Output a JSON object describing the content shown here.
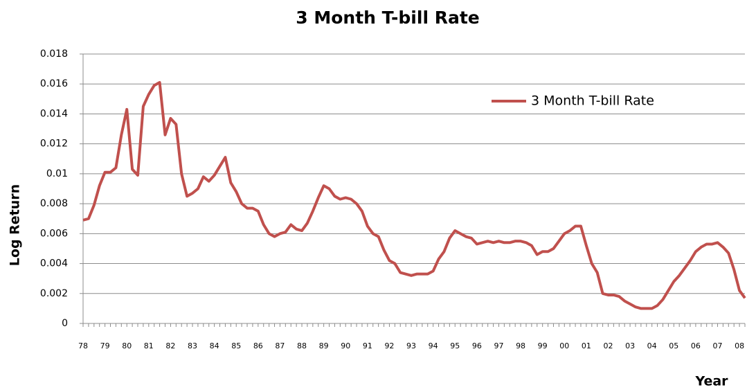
{
  "chart_data": {
    "type": "line",
    "title": "3 Month T-bill Rate",
    "xlabel": "Year",
    "ylabel": "Log Return",
    "categories": [
      "78",
      null,
      null,
      null,
      "79",
      null,
      null,
      null,
      "80",
      null,
      null,
      null,
      "81",
      null,
      null,
      null,
      "82",
      null,
      null,
      null,
      "83",
      null,
      null,
      null,
      "84",
      null,
      null,
      null,
      "85",
      null,
      null,
      null,
      "86",
      null,
      null,
      null,
      "87",
      null,
      null,
      null,
      "88",
      null,
      null,
      null,
      "89",
      null,
      null,
      null,
      "90",
      null,
      null,
      null,
      "91",
      null,
      null,
      null,
      "92",
      null,
      null,
      null,
      "93",
      null,
      null,
      null,
      "94",
      null,
      null,
      null,
      "95",
      null,
      null,
      null,
      "96",
      null,
      null,
      null,
      "97",
      null,
      null,
      null,
      "98",
      null,
      null,
      null,
      "99",
      null,
      null,
      null,
      "00",
      null,
      null,
      null,
      "01",
      null,
      null,
      null,
      "02",
      null,
      null,
      null,
      "03",
      null,
      null,
      null,
      "04",
      null,
      null,
      null,
      "05",
      null,
      null,
      null,
      "06",
      null,
      null,
      null,
      "07",
      null,
      null,
      null,
      "08",
      null
    ],
    "series": [
      {
        "name": "3 Month T-bill Rate",
        "color": "#c0504d",
        "values": [
          0.0069,
          0.007,
          0.0079,
          0.0092,
          0.0101,
          0.0101,
          0.0104,
          0.0126,
          0.0143,
          0.0103,
          0.0099,
          0.0145,
          0.0153,
          0.0159,
          0.0161,
          0.0126,
          0.0137,
          0.0133,
          0.01,
          0.0085,
          0.0087,
          0.009,
          0.0098,
          0.0095,
          0.0099,
          0.0105,
          0.0111,
          0.0094,
          0.0088,
          0.008,
          0.0077,
          0.0077,
          0.0075,
          0.0066,
          0.006,
          0.0058,
          0.006,
          0.0061,
          0.0066,
          0.0063,
          0.0062,
          0.0067,
          0.0075,
          0.0084,
          0.0092,
          0.009,
          0.0085,
          0.0083,
          0.0084,
          0.0083,
          0.008,
          0.0075,
          0.0065,
          0.006,
          0.0058,
          0.0049,
          0.0042,
          0.004,
          0.0034,
          0.0033,
          0.0032,
          0.0033,
          0.0033,
          0.0033,
          0.0035,
          0.0043,
          0.0048,
          0.0057,
          0.0062,
          0.006,
          0.0058,
          0.0057,
          0.0053,
          0.0054,
          0.0055,
          0.0054,
          0.0055,
          0.0054,
          0.0054,
          0.0055,
          0.0055,
          0.0054,
          0.0052,
          0.0046,
          0.0048,
          0.0048,
          0.005,
          0.0055,
          0.006,
          0.0062,
          0.0065,
          0.0065,
          0.0052,
          0.004,
          0.0034,
          0.002,
          0.0019,
          0.0019,
          0.0018,
          0.0015,
          0.0013,
          0.0011,
          0.001,
          0.001,
          0.001,
          0.0012,
          0.0016,
          0.0022,
          0.0028,
          0.0032,
          0.0037,
          0.0042,
          0.0048,
          0.0051,
          0.0053,
          0.0053,
          0.0054,
          0.0051,
          0.0047,
          0.0036,
          0.0022,
          0.0017
        ]
      }
    ],
    "ylim": [
      0,
      0.018
    ],
    "yticks": [
      0,
      0.002,
      0.004,
      0.006,
      0.008,
      0.01,
      0.012,
      0.014,
      0.016,
      0.018
    ],
    "grid": true,
    "legend": "upper right"
  }
}
